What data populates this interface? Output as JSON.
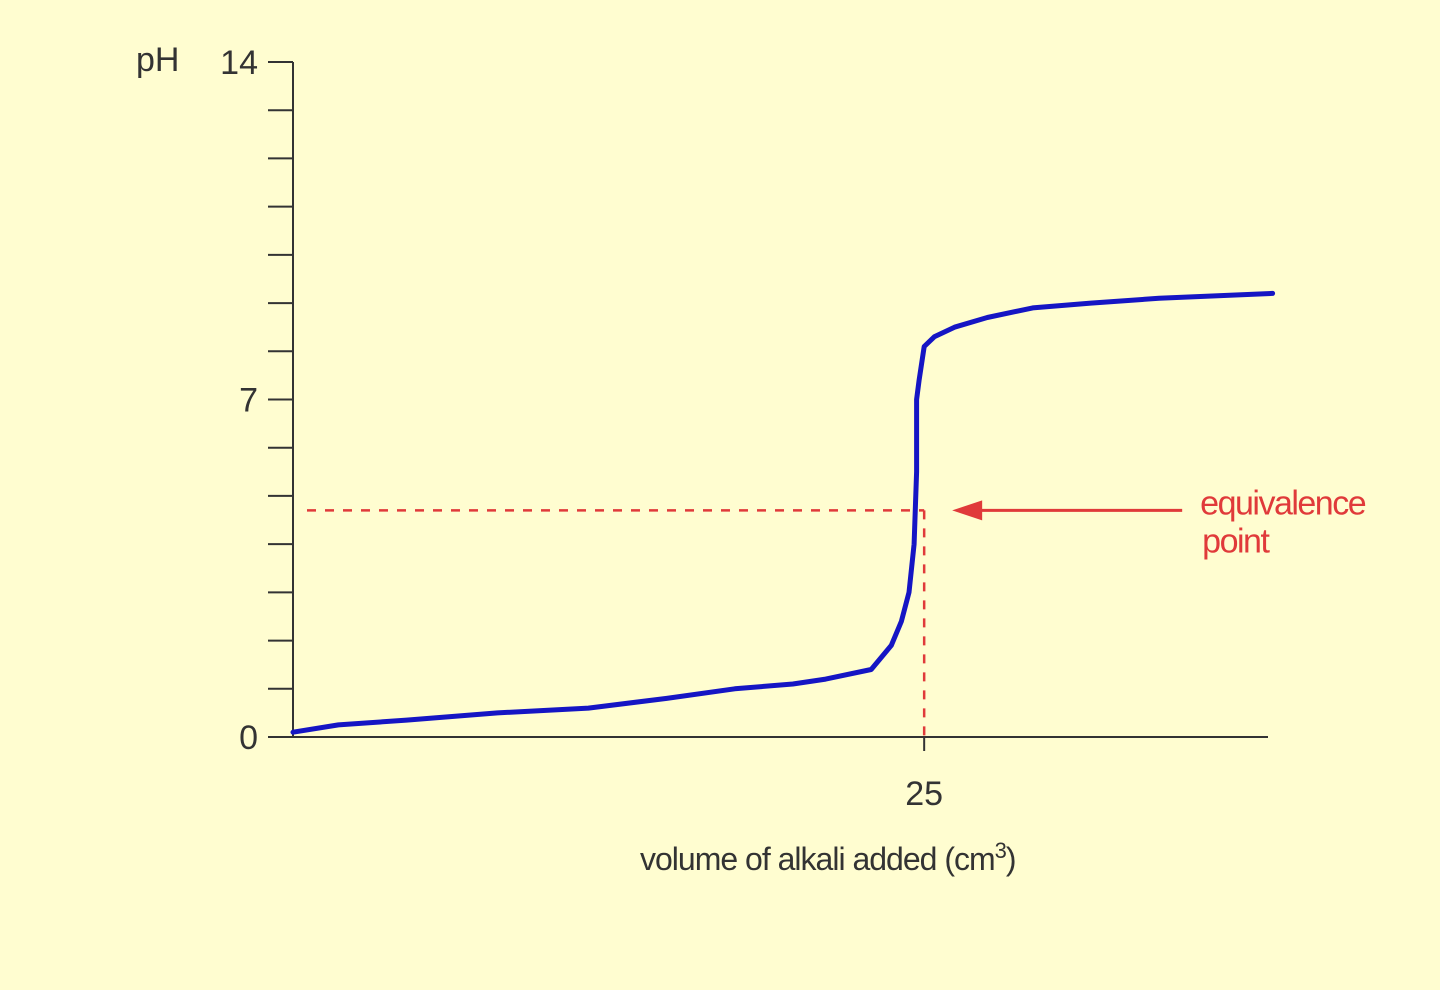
{
  "chart_data": {
    "type": "line",
    "ylabel": "pH",
    "xlabel": "volume of alkali added (cm",
    "xlabel_superscript": "3",
    "xlabel_suffix": ")",
    "xlim": [
      0,
      38.5
    ],
    "ylim": [
      0,
      14
    ],
    "yticks_labeled": [
      {
        "value": 14,
        "label": "14"
      },
      {
        "value": 7,
        "label": "7"
      },
      {
        "value": 0,
        "label": "0"
      }
    ],
    "ytick_step": 1,
    "xticks_labeled": [
      {
        "value": 25,
        "label": "25"
      }
    ],
    "series": [
      {
        "color": "#1515c4",
        "x": [
          0,
          1.8,
          4.5,
          8.1,
          11.7,
          14.8,
          17.5,
          19.8,
          21.1,
          22.9,
          23.7,
          24.1,
          24.4,
          24.6,
          24.7,
          24.7,
          24.8,
          25.0,
          25.4,
          26.2,
          27.5,
          29.3,
          31.6,
          34.3,
          38.8
        ],
        "y": [
          0.1,
          0.25,
          0.35,
          0.5,
          0.6,
          0.8,
          1.0,
          1.1,
          1.2,
          1.4,
          1.9,
          2.4,
          3.0,
          4.0,
          5.5,
          7.0,
          7.4,
          8.1,
          8.3,
          8.5,
          8.7,
          8.9,
          9.0,
          9.1,
          9.2
        ]
      }
    ],
    "annotations": {
      "equivalence_point": {
        "x": 25,
        "y": 4.7,
        "line_color": "#e03a3a",
        "label_lines": [
          "equivalence",
          "point"
        ]
      }
    }
  }
}
